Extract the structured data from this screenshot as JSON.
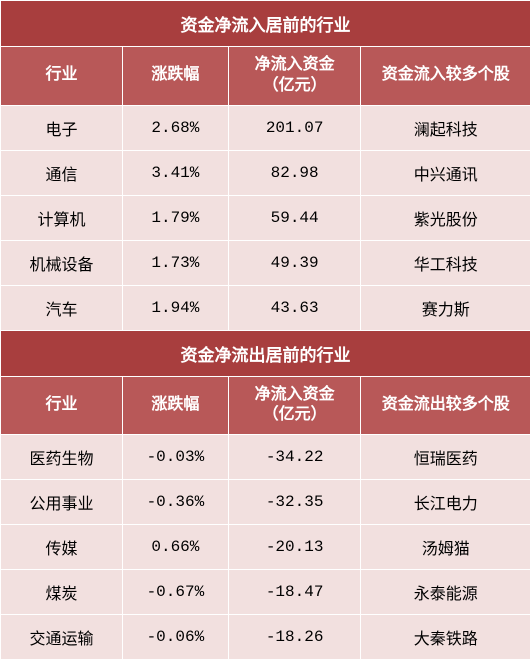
{
  "colors": {
    "title_bg": "#a83e3e",
    "header_bg": "#b85858",
    "data_bg": "#f2e0df",
    "border": "#ffffff",
    "title_text": "#ffffff",
    "data_text": "#000000"
  },
  "inflow": {
    "title": "资金净流入居前的行业",
    "columns": [
      "行业",
      "涨跌幅",
      "净流入资金（亿元）",
      "资金流入较多个股"
    ],
    "rows": [
      {
        "industry": "电子",
        "pct": "2.68%",
        "amount": "201.07",
        "stock": "澜起科技"
      },
      {
        "industry": "通信",
        "pct": "3.41%",
        "amount": "82.98",
        "stock": "中兴通讯"
      },
      {
        "industry": "计算机",
        "pct": "1.79%",
        "amount": "59.44",
        "stock": "紫光股份"
      },
      {
        "industry": "机械设备",
        "pct": "1.73%",
        "amount": "49.39",
        "stock": "华工科技"
      },
      {
        "industry": "汽车",
        "pct": "1.94%",
        "amount": "43.63",
        "stock": "赛力斯"
      }
    ]
  },
  "outflow": {
    "title": "资金净流出居前的行业",
    "columns": [
      "行业",
      "涨跌幅",
      "净流入资金（亿元）",
      "资金流出较多个股"
    ],
    "rows": [
      {
        "industry": "医药生物",
        "pct": "-0.03%",
        "amount": "-34.22",
        "stock": "恒瑞医药"
      },
      {
        "industry": "公用事业",
        "pct": "-0.36%",
        "amount": "-32.35",
        "stock": "长江电力"
      },
      {
        "industry": "传媒",
        "pct": "0.66%",
        "amount": "-20.13",
        "stock": "汤姆猫"
      },
      {
        "industry": "煤炭",
        "pct": "-0.67%",
        "amount": "-18.47",
        "stock": "永泰能源"
      },
      {
        "industry": "交通运输",
        "pct": "-0.06%",
        "amount": "-18.26",
        "stock": "大秦铁路"
      }
    ]
  }
}
